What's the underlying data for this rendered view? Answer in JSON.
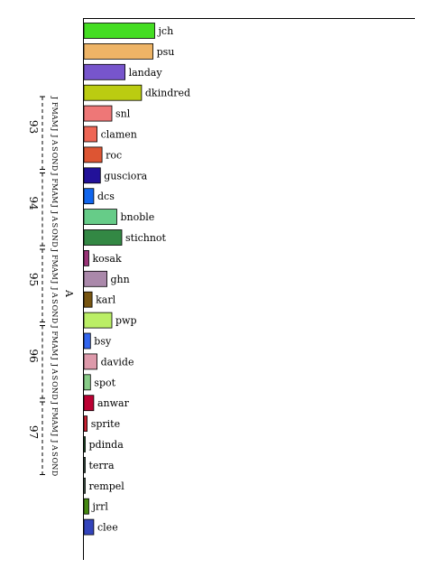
{
  "chart_data": {
    "type": "bar",
    "orientation": "horizontal",
    "title": "",
    "xlabel": "",
    "ylabel": "",
    "grid": false,
    "legend": "none",
    "xlim": [
      0,
      100
    ],
    "categories": [
      "jch",
      "psu",
      "landay",
      "dkindred",
      "snl",
      "clamen",
      "roc",
      "gusciora",
      "dcs",
      "bnoble",
      "stichnot",
      "kosak",
      "ghn",
      "karl",
      "pwp",
      "bsy",
      "davide",
      "spot",
      "anwar",
      "sprite",
      "pdinda",
      "terra",
      "rempel",
      "jrrl",
      "clee"
    ],
    "values": [
      21.5,
      21,
      12.5,
      17.5,
      8.5,
      4,
      5.5,
      5,
      3,
      10,
      11.5,
      1.5,
      7,
      2.5,
      8.5,
      2,
      4,
      2,
      3,
      1,
      0.4,
      0.4,
      0.4,
      1.5,
      3
    ],
    "colors": [
      "#44dd22",
      "#eeb466",
      "#7755cc",
      "#bbcc11",
      "#ee7777",
      "#ee6655",
      "#dd5533",
      "#221199",
      "#1166ee",
      "#66cc88",
      "#338844",
      "#993377",
      "#aa88aa",
      "#775511",
      "#bbee66",
      "#3366ee",
      "#dd99aa",
      "#88cc88",
      "#bb0033",
      "#cc2233",
      "#226633",
      "#446655",
      "#557766",
      "#448811",
      "#3344bb"
    ],
    "time_axis": {
      "month_letters": [
        "J",
        "F",
        "M",
        "A",
        "M",
        "J",
        "J",
        "A",
        "S",
        "O",
        "N",
        "D"
      ],
      "years": [
        "93",
        "94",
        "95",
        "96",
        "97"
      ],
      "marker": "A"
    }
  }
}
